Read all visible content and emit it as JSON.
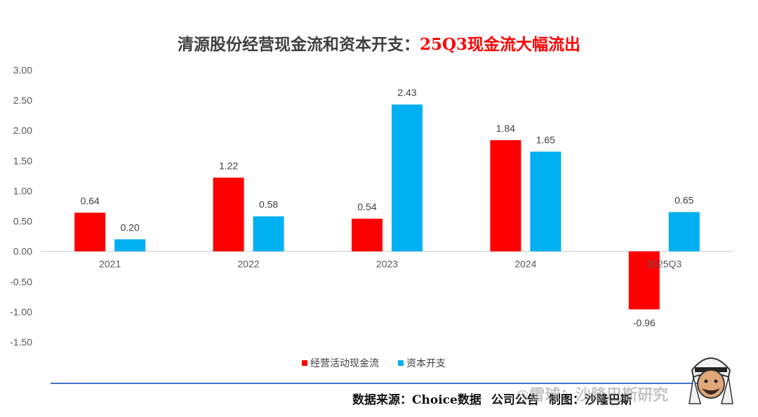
{
  "title": {
    "part1": "清源股份经营现金流和资本开支：",
    "part2": "25Q3现金流大幅流出",
    "part1_color": "#404040",
    "part2_color": "#ff0000"
  },
  "chart_data": {
    "type": "bar",
    "categories": [
      "2021",
      "2022",
      "2023",
      "2024",
      "2025Q3"
    ],
    "series": [
      {
        "name": "经营活动现金流",
        "color": "#ff0000",
        "values": [
          0.64,
          1.22,
          0.54,
          1.84,
          -0.96
        ]
      },
      {
        "name": "资本开支",
        "color": "#00b0f0",
        "values": [
          0.2,
          0.58,
          2.43,
          1.65,
          0.65
        ]
      }
    ],
    "ylim": [
      -1.5,
      3.0
    ],
    "yticks": [
      "3.00",
      "2.50",
      "2.00",
      "1.50",
      "1.00",
      "0.50",
      "0.00",
      "-0.50",
      "-1.00",
      "-1.50"
    ],
    "legend_position": "bottom",
    "grid": false
  },
  "footer": {
    "source": "数据来源：Choice数据",
    "note": "公司公告",
    "credit": "制图：沙隆巴斯"
  },
  "watermark": {
    "text": "◎雪球：沙隆巴斯研究"
  }
}
